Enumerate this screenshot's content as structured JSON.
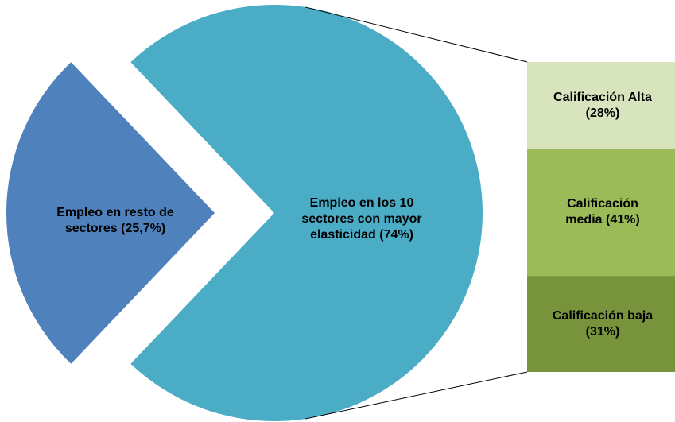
{
  "chart_data": [
    {
      "type": "pie",
      "categories": [
        "Empleo en resto de sectores",
        "Empleo en los 10 sectores con mayor elasticidad"
      ],
      "values": [
        25.7,
        74
      ],
      "value_labels": [
        "(25,7%)",
        "(74%)"
      ],
      "colors": [
        "#4f81bd",
        "#4bacc6"
      ]
    },
    {
      "type": "bar",
      "categories": [
        "Calificación Alta",
        "Calificación media",
        "Calificación baja"
      ],
      "values": [
        28,
        41,
        31
      ],
      "value_labels": [
        "(28%)",
        "(41%)",
        "(31%)"
      ],
      "colors": [
        "#d7e4bd",
        "#9bbb59",
        "#77933c"
      ]
    }
  ]
}
